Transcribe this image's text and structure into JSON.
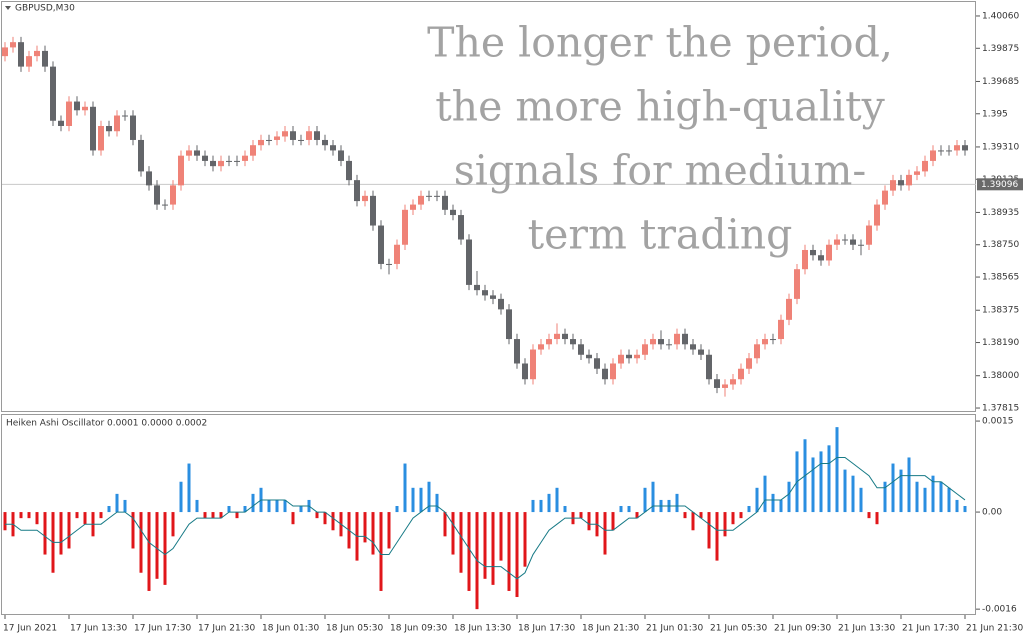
{
  "chart_data": [
    {
      "type": "candlestick",
      "title": "GBPUSD,M30",
      "annotation": [
        "The longer the period,",
        "the more high-quality",
        "signals for medium-",
        "term trading"
      ],
      "up_color": "#ef8277",
      "down_color": "#636569",
      "ylim": [
        1.37798,
        1.4014
      ],
      "yticks": [
        {
          "value": 1.4006,
          "label": "1.40060"
        },
        1.39875,
        1.39685,
        1.395,
        {
          "value": 1.3931,
          "label": "1.39310"
        },
        1.39125,
        1.38935,
        {
          "value": 1.3875,
          "label": "1.38750"
        },
        1.38565,
        1.38375,
        {
          "value": 1.3819,
          "label": "1.38190"
        },
        {
          "value": 1.38,
          "label": "1.38000"
        },
        1.37815
      ],
      "last_price": 1.39096,
      "open": [
        1.3983,
        1.3988,
        1.3991,
        1.3977,
        1.3983,
        1.3986,
        1.3977,
        1.3946,
        1.3943,
        1.3957,
        1.3952,
        1.3954,
        1.3929,
        1.3943,
        1.394,
        1.3949,
        1.3949,
        1.3935,
        1.3917,
        1.3909,
        1.3898,
        1.3898,
        1.3909,
        1.3926,
        1.3929,
        1.3926,
        1.3923,
        1.392,
        1.3923,
        1.3923,
        1.3923,
        1.3926,
        1.3932,
        1.3935,
        1.3935,
        1.3937,
        1.394,
        1.3935,
        1.3935,
        1.394,
        1.3935,
        1.3932,
        1.3929,
        1.3923,
        1.3912,
        1.39,
        1.3903,
        1.3886,
        1.3864,
        1.3864,
        1.3875,
        1.3895,
        1.3898,
        1.3903,
        1.3903,
        1.3903,
        1.3895,
        1.3892,
        1.3878,
        1.3852,
        1.3849,
        1.3846,
        1.3844,
        1.3838,
        1.3821,
        1.3807,
        1.3798,
        1.3815,
        1.3818,
        1.3821,
        1.3824,
        1.3821,
        1.3818,
        1.3812,
        1.381,
        1.3804,
        1.3798,
        1.3807,
        1.3812,
        1.381,
        1.3812,
        1.3818,
        1.3821,
        1.3818,
        1.3818,
        1.3824,
        1.3818,
        1.3815,
        1.3812,
        1.3798,
        1.3793,
        1.3795,
        1.3798,
        1.3804,
        1.381,
        1.3818,
        1.3821,
        1.3821,
        1.3832,
        1.3844,
        1.3861,
        1.3872,
        1.3869,
        1.3866,
        1.3875,
        1.3878,
        1.3878,
        1.3875,
        1.3875,
        1.3886,
        1.3898,
        1.3906,
        1.3912,
        1.3909,
        1.3915,
        1.3917,
        1.3923,
        1.3929,
        1.3929,
        1.3929,
        1.3932
      ],
      "close": [
        1.3988,
        1.3991,
        1.3977,
        1.3983,
        1.3986,
        1.3977,
        1.3946,
        1.3943,
        1.3957,
        1.3952,
        1.3954,
        1.3929,
        1.3943,
        1.394,
        1.3949,
        1.3949,
        1.3935,
        1.3917,
        1.3909,
        1.3898,
        1.3898,
        1.3909,
        1.3926,
        1.3929,
        1.3926,
        1.3923,
        1.392,
        1.3923,
        1.3923,
        1.3923,
        1.3926,
        1.3932,
        1.3935,
        1.3935,
        1.3937,
        1.394,
        1.3935,
        1.3935,
        1.394,
        1.3935,
        1.3932,
        1.3929,
        1.3923,
        1.3912,
        1.39,
        1.3903,
        1.3886,
        1.3864,
        1.3864,
        1.3875,
        1.3895,
        1.3898,
        1.3903,
        1.3903,
        1.3903,
        1.3895,
        1.3892,
        1.3878,
        1.3852,
        1.3849,
        1.3846,
        1.3844,
        1.3838,
        1.3821,
        1.3807,
        1.3798,
        1.3815,
        1.3818,
        1.3821,
        1.3824,
        1.3821,
        1.3818,
        1.3812,
        1.381,
        1.3804,
        1.3798,
        1.3807,
        1.3812,
        1.381,
        1.3812,
        1.3818,
        1.3821,
        1.3818,
        1.3818,
        1.3824,
        1.3818,
        1.3815,
        1.3812,
        1.3798,
        1.3793,
        1.3795,
        1.3798,
        1.3804,
        1.381,
        1.3818,
        1.3821,
        1.3821,
        1.3832,
        1.3844,
        1.3861,
        1.3872,
        1.3869,
        1.3866,
        1.3875,
        1.3878,
        1.3878,
        1.3875,
        1.3875,
        1.3886,
        1.3898,
        1.3906,
        1.3912,
        1.3909,
        1.3915,
        1.3917,
        1.3923,
        1.3929,
        1.3929,
        1.3929,
        1.3932,
        1.3929
      ],
      "high": [
        1.3991,
        1.3994,
        1.3994,
        1.3986,
        1.3989,
        1.3989,
        1.398,
        1.3949,
        1.396,
        1.396,
        1.3957,
        1.3957,
        1.3946,
        1.3946,
        1.3952,
        1.3952,
        1.3952,
        1.3938,
        1.392,
        1.3912,
        1.3901,
        1.3912,
        1.3929,
        1.3932,
        1.3932,
        1.3929,
        1.3926,
        1.3926,
        1.3926,
        1.3926,
        1.3929,
        1.3935,
        1.3938,
        1.3938,
        1.394,
        1.3943,
        1.3943,
        1.3938,
        1.3943,
        1.3943,
        1.3938,
        1.3935,
        1.3932,
        1.3926,
        1.3915,
        1.3906,
        1.3906,
        1.3889,
        1.3867,
        1.3878,
        1.3898,
        1.3901,
        1.3906,
        1.3906,
        1.3906,
        1.3906,
        1.3898,
        1.3895,
        1.3881,
        1.386,
        1.3852,
        1.3849,
        1.3847,
        1.3841,
        1.3824,
        1.381,
        1.3818,
        1.3821,
        1.3824,
        1.383,
        1.3827,
        1.3824,
        1.3821,
        1.3815,
        1.3813,
        1.3807,
        1.381,
        1.3815,
        1.3815,
        1.3815,
        1.3821,
        1.3824,
        1.3826,
        1.3821,
        1.3827,
        1.3827,
        1.3821,
        1.3818,
        1.3815,
        1.3801,
        1.3798,
        1.3801,
        1.3807,
        1.3813,
        1.3821,
        1.3824,
        1.3824,
        1.3835,
        1.3847,
        1.3864,
        1.3875,
        1.3875,
        1.3872,
        1.3878,
        1.3881,
        1.3881,
        1.3881,
        1.3878,
        1.3889,
        1.3901,
        1.3909,
        1.3915,
        1.3915,
        1.3918,
        1.392,
        1.3926,
        1.3932,
        1.3932,
        1.3932,
        1.3935,
        1.3935
      ],
      "low": [
        1.398,
        1.3985,
        1.3974,
        1.3974,
        1.398,
        1.3974,
        1.3943,
        1.394,
        1.394,
        1.3949,
        1.3949,
        1.3926,
        1.3926,
        1.3937,
        1.3937,
        1.3946,
        1.3932,
        1.3914,
        1.3906,
        1.3895,
        1.3895,
        1.3895,
        1.3906,
        1.3923,
        1.3923,
        1.392,
        1.3917,
        1.3917,
        1.392,
        1.392,
        1.392,
        1.3923,
        1.3929,
        1.3932,
        1.3932,
        1.3934,
        1.3932,
        1.3932,
        1.3932,
        1.3932,
        1.3929,
        1.3926,
        1.392,
        1.3909,
        1.3897,
        1.3897,
        1.3883,
        1.3861,
        1.3858,
        1.3861,
        1.3872,
        1.3892,
        1.3895,
        1.39,
        1.39,
        1.3892,
        1.3889,
        1.3875,
        1.3849,
        1.3846,
        1.3843,
        1.3841,
        1.3835,
        1.3818,
        1.3804,
        1.3795,
        1.3795,
        1.3812,
        1.3815,
        1.3818,
        1.3818,
        1.3815,
        1.3809,
        1.3807,
        1.3801,
        1.3795,
        1.3795,
        1.3804,
        1.3807,
        1.3807,
        1.3809,
        1.3815,
        1.3815,
        1.3815,
        1.3815,
        1.3815,
        1.3812,
        1.3809,
        1.3795,
        1.379,
        1.3788,
        1.3792,
        1.3795,
        1.3801,
        1.3807,
        1.3815,
        1.3818,
        1.3818,
        1.3829,
        1.3841,
        1.3858,
        1.3866,
        1.3863,
        1.3863,
        1.3872,
        1.3875,
        1.3872,
        1.3869,
        1.3872,
        1.3883,
        1.3895,
        1.3903,
        1.3906,
        1.3906,
        1.3912,
        1.3914,
        1.392,
        1.3926,
        1.3926,
        1.3926,
        1.3926
      ]
    },
    {
      "type": "histogram-oscillator",
      "title": "Heiken Ashi Oscillator 0.0001 0.0000 0.0002",
      "pos_color": "#2a8ee0",
      "neg_color": "#e0161a",
      "signal_color": "#177a86",
      "ylim": [
        -0.00168,
        0.0016
      ],
      "yticks": [
        0.0015,
        {
          "value": 0,
          "label": "0.00"
        },
        -0.0016
      ],
      "xticks": [
        {
          "value": 0,
          "label": "17 Jun 2021"
        },
        {
          "value": 8,
          "label": "17 Jun 13:30"
        },
        {
          "value": 16,
          "label": "17 Jun 17:30"
        },
        {
          "value": 24,
          "label": "17 Jun 21:30"
        },
        {
          "value": 32,
          "label": "18 Jun 01:30"
        },
        {
          "value": 40,
          "label": "18 Jun 05:30"
        },
        {
          "value": 48,
          "label": "18 Jun 09:30"
        },
        {
          "value": 56,
          "label": "18 Jun 13:30"
        },
        {
          "value": 64,
          "label": "18 Jun 17:30"
        },
        {
          "value": 72,
          "label": "18 Jun 21:30"
        },
        {
          "value": 80,
          "label": "21 Jun 01:30"
        },
        {
          "value": 88,
          "label": "21 Jun 05:30"
        },
        {
          "value": 96,
          "label": "21 Jun 09:30"
        },
        {
          "value": 104,
          "label": "21 Jun 13:30"
        },
        {
          "value": 112,
          "label": "21 Jun 17:30"
        },
        {
          "value": 120,
          "label": "21 Jun 21:30"
        }
      ],
      "values": [
        -0.0003,
        -0.0004,
        -0.0001,
        -0.0001,
        -0.0002,
        -0.0007,
        -0.001,
        -0.0007,
        -0.0006,
        -0.0001,
        -0.0002,
        -0.0004,
        -0.0001,
        0.0001,
        0.0003,
        0.0002,
        -0.0006,
        -0.001,
        -0.0013,
        -0.0011,
        -0.0012,
        -0.0004,
        0.0005,
        0.0008,
        0.0002,
        -0.0001,
        -0.0001,
        -0.0001,
        0.0001,
        -0.0001,
        0.0001,
        0.0003,
        0.0004,
        0.0002,
        0.0002,
        0.0002,
        -0.0002,
        0.0001,
        0.0002,
        -0.0001,
        -0.0002,
        -0.0003,
        -0.0004,
        -0.0006,
        -0.0008,
        -0.0005,
        -0.0007,
        -0.0013,
        -0.0006,
        0.0001,
        0.0008,
        0.0004,
        0.0004,
        0.0005,
        0.0003,
        -0.0004,
        -0.0007,
        -0.001,
        -0.0013,
        -0.0016,
        -0.0011,
        -0.0012,
        -0.0008,
        -0.0013,
        -0.0014,
        -0.0009,
        0.0002,
        0.0002,
        0.0003,
        0.0004,
        0.0001,
        -0.0002,
        -0.0001,
        -0.0003,
        -0.0004,
        -0.0007,
        -0.0003,
        0.0001,
        0.0001,
        -0.0001,
        0.0004,
        0.0005,
        0.0002,
        0.0002,
        0.0003,
        -0.0001,
        -0.0003,
        -0.0001,
        -0.0006,
        -0.0008,
        -0.0004,
        -0.0002,
        -0.0001,
        0.0001,
        0.0004,
        0.0006,
        0.0003,
        0.0002,
        0.0005,
        0.001,
        0.0012,
        0.0009,
        0.001,
        0.0011,
        0.0014,
        0.0007,
        0.0006,
        0.0004,
        -0.0001,
        -0.0002,
        0.0005,
        0.0008,
        0.0007,
        0.0009,
        0.0005,
        0.0004,
        0.0006,
        0.0005,
        0.0004,
        0.0002,
        0.0001
      ],
      "signal": [
        -0.0002,
        -0.0002,
        -0.0003,
        -0.0003,
        -0.0003,
        -0.0004,
        -0.0005,
        -0.0005,
        -0.0004,
        -0.0003,
        -0.0002,
        -0.0002,
        -0.0002,
        -0.0001,
        0,
        0,
        -0.0001,
        -0.0003,
        -0.0005,
        -0.0006,
        -0.0007,
        -0.0006,
        -0.0004,
        -0.0002,
        -0.0001,
        -0.0001,
        -0.0001,
        -0.0001,
        0,
        0,
        0,
        0.0001,
        0.0002,
        0.0002,
        0.0002,
        0.0002,
        0.0001,
        0.0001,
        0.0001,
        0,
        0,
        -0.0001,
        -0.0002,
        -0.0003,
        -0.0004,
        -0.0004,
        -0.0005,
        -0.0007,
        -0.0007,
        -0.0005,
        -0.0003,
        -0.0001,
        0,
        0.0001,
        0.0001,
        0,
        -0.0002,
        -0.0004,
        -0.0006,
        -0.0008,
        -0.0009,
        -0.0009,
        -0.0009,
        -0.001,
        -0.0011,
        -0.001,
        -0.0007,
        -0.0005,
        -0.0003,
        -0.0002,
        -0.0001,
        -0.0001,
        -0.0001,
        -0.0002,
        -0.0002,
        -0.0003,
        -0.0003,
        -0.0002,
        -0.0001,
        -0.0001,
        0,
        0.0001,
        0.0001,
        0.0001,
        0.0001,
        0.0001,
        0,
        -0.0001,
        -0.0002,
        -0.0003,
        -0.0003,
        -0.0003,
        -0.0002,
        -0.0001,
        0,
        0.0002,
        0.0002,
        0.0002,
        0.0003,
        0.0005,
        0.0006,
        0.0007,
        0.0008,
        0.0008,
        0.0009,
        0.0009,
        0.0008,
        0.0007,
        0.0006,
        0.0004,
        0.0004,
        0.0005,
        0.0006,
        0.0006,
        0.0006,
        0.0006,
        0.0005,
        0.0005,
        0.0004,
        0.0003,
        0.0002
      ]
    }
  ]
}
